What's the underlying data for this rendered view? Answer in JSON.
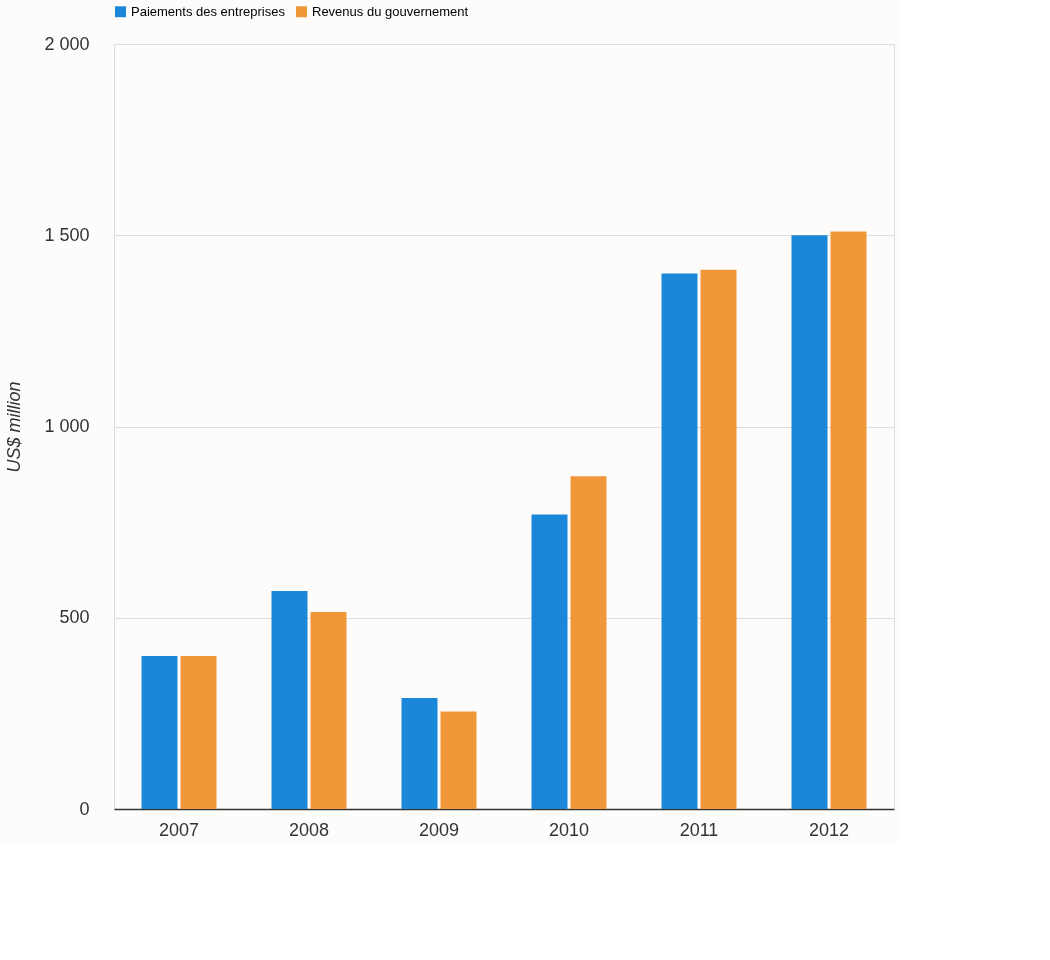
{
  "chart_data": {
    "type": "bar",
    "ylabel": "US$ million",
    "categories": [
      "2007",
      "2008",
      "2009",
      "2010",
      "2011",
      "2012"
    ],
    "series": [
      {
        "name": "Paiements des entreprises",
        "color": "#1a87d9",
        "values": [
          400,
          570,
          290,
          770,
          1400,
          1500
        ]
      },
      {
        "name": "Revenus du gouvernement",
        "color": "#f0973a",
        "values": [
          400,
          515,
          255,
          870,
          1410,
          1510
        ]
      }
    ],
    "ylim": [
      0,
      2000
    ],
    "yticks": [
      0,
      500,
      {
        "value": 1000,
        "label": "1 000"
      },
      {
        "value": 1500,
        "label": "1 500"
      },
      {
        "value": 2000,
        "label": "2 000"
      }
    ],
    "grid": "y",
    "legend": "top left"
  }
}
